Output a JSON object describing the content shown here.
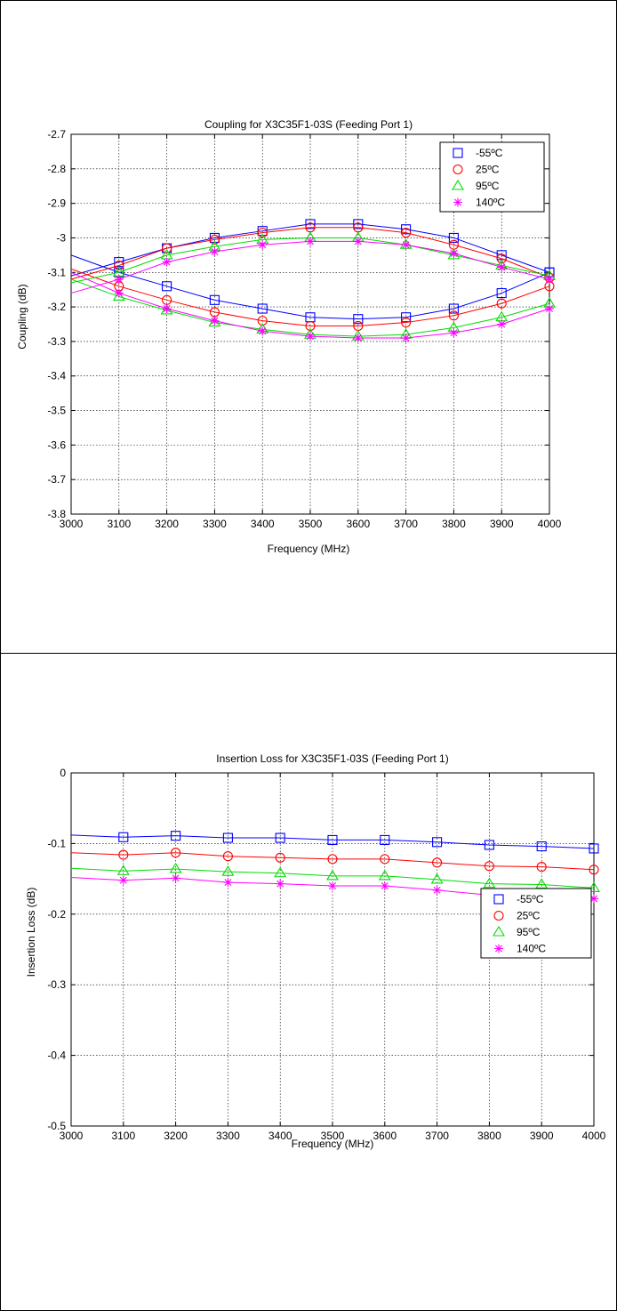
{
  "chart_data": [
    {
      "type": "line",
      "title": "Coupling for X3C35F1-03S (Feeding Port 1)",
      "xlabel": "Frequency (MHz)",
      "ylabel": "Coupling (dB)",
      "xlim": [
        3000,
        4000
      ],
      "ylim": [
        -3.8,
        -2.7
      ],
      "xticks": [
        "3000",
        "3100",
        "3200",
        "3300",
        "3400",
        "3500",
        "3600",
        "3700",
        "3800",
        "3900",
        "4000"
      ],
      "yticks": [
        "-2.7",
        "-2.8",
        "-2.9",
        "-3",
        "-3.1",
        "-3.2",
        "-3.3",
        "-3.4",
        "-3.5",
        "-3.6",
        "-3.7",
        "-3.8"
      ],
      "grid": true,
      "legend_position": "top-right",
      "x": [
        3000,
        3100,
        3200,
        3300,
        3400,
        3500,
        3600,
        3700,
        3800,
        3900,
        4000
      ],
      "series": [
        {
          "name": "-55ºC",
          "color": "#0000ff",
          "marker": "square",
          "values": [
            -3.11,
            -3.07,
            -3.03,
            -3.0,
            -2.98,
            -2.96,
            -2.96,
            -2.975,
            -3.0,
            -3.05,
            -3.1
          ]
        },
        {
          "name": "-55ºC",
          "color": "#0000ff",
          "marker": "square",
          "values": [
            -3.05,
            -3.1,
            -3.14,
            -3.18,
            -3.205,
            -3.23,
            -3.235,
            -3.23,
            -3.205,
            -3.16,
            -3.1
          ]
        },
        {
          "name": "25ºC",
          "color": "#ff0000",
          "marker": "circle",
          "values": [
            -3.12,
            -3.08,
            -3.03,
            -3.005,
            -2.985,
            -2.97,
            -2.97,
            -2.985,
            -3.02,
            -3.06,
            -3.115
          ]
        },
        {
          "name": "25ºC",
          "color": "#ff0000",
          "marker": "circle",
          "values": [
            -3.09,
            -3.14,
            -3.18,
            -3.215,
            -3.24,
            -3.255,
            -3.255,
            -3.245,
            -3.225,
            -3.19,
            -3.14
          ]
        },
        {
          "name": "95ºC",
          "color": "#00dd00",
          "marker": "triangle",
          "values": [
            -3.13,
            -3.1,
            -3.05,
            -3.025,
            -3.005,
            -3.0,
            -3.0,
            -3.02,
            -3.05,
            -3.08,
            -3.11
          ]
        },
        {
          "name": "95ºC",
          "color": "#00dd00",
          "marker": "triangle",
          "values": [
            -3.12,
            -3.17,
            -3.21,
            -3.245,
            -3.265,
            -3.28,
            -3.285,
            -3.28,
            -3.26,
            -3.23,
            -3.19
          ]
        },
        {
          "name": "140ºC",
          "color": "#ff00ff",
          "marker": "star",
          "values": [
            -3.16,
            -3.12,
            -3.07,
            -3.04,
            -3.02,
            -3.01,
            -3.01,
            -3.02,
            -3.045,
            -3.085,
            -3.12
          ]
        },
        {
          "name": "140ºC",
          "color": "#ff00ff",
          "marker": "star",
          "values": [
            -3.1,
            -3.16,
            -3.205,
            -3.24,
            -3.27,
            -3.285,
            -3.29,
            -3.29,
            -3.275,
            -3.25,
            -3.205
          ]
        }
      ]
    },
    {
      "type": "line",
      "title": "Insertion Loss for X3C35F1-03S (Feeding Port 1)",
      "xlabel": "Frequency (MHz)",
      "ylabel": "Insertion Loss (dB)",
      "xlim": [
        3000,
        4000
      ],
      "ylim": [
        -0.5,
        0
      ],
      "xticks": [
        "3000",
        "3100",
        "3200",
        "3300",
        "3400",
        "3500",
        "3600",
        "3700",
        "3800",
        "3900",
        "4000"
      ],
      "yticks": [
        "0",
        "-0.1",
        "-0.2",
        "-0.3",
        "-0.4",
        "-0.5"
      ],
      "grid": true,
      "legend_position": "right",
      "x": [
        3000,
        3100,
        3200,
        3300,
        3400,
        3500,
        3600,
        3700,
        3800,
        3900,
        4000
      ],
      "series": [
        {
          "name": "-55ºC",
          "color": "#0000ff",
          "marker": "square",
          "values": [
            -0.088,
            -0.091,
            -0.089,
            -0.092,
            -0.092,
            -0.095,
            -0.095,
            -0.098,
            -0.102,
            -0.104,
            -0.107
          ]
        },
        {
          "name": "25ºC",
          "color": "#ff0000",
          "marker": "circle",
          "values": [
            -0.113,
            -0.116,
            -0.113,
            -0.118,
            -0.12,
            -0.122,
            -0.122,
            -0.127,
            -0.132,
            -0.133,
            -0.137
          ]
        },
        {
          "name": "95ºC",
          "color": "#00dd00",
          "marker": "triangle",
          "values": [
            -0.135,
            -0.139,
            -0.136,
            -0.14,
            -0.142,
            -0.146,
            -0.146,
            -0.151,
            -0.157,
            -0.158,
            -0.163
          ]
        },
        {
          "name": "140ºC",
          "color": "#ff00ff",
          "marker": "star",
          "values": [
            -0.148,
            -0.152,
            -0.149,
            -0.155,
            -0.157,
            -0.16,
            -0.16,
            -0.166,
            -0.173,
            -0.174,
            -0.178
          ]
        }
      ],
      "legend": [
        {
          "name": "-55ºC",
          "color": "#0000ff",
          "marker": "square"
        },
        {
          "name": "25ºC",
          "color": "#ff0000",
          "marker": "circle"
        },
        {
          "name": "95ºC",
          "color": "#00dd00",
          "marker": "triangle"
        },
        {
          "name": "140ºC",
          "color": "#ff00ff",
          "marker": "star"
        }
      ]
    }
  ],
  "legend_top": [
    {
      "name": "-55ºC",
      "color": "#0000ff",
      "marker": "square"
    },
    {
      "name": "25ºC",
      "color": "#ff0000",
      "marker": "circle"
    },
    {
      "name": "95ºC",
      "color": "#00dd00",
      "marker": "triangle"
    },
    {
      "name": "140ºC",
      "color": "#ff00ff",
      "marker": "star"
    }
  ]
}
